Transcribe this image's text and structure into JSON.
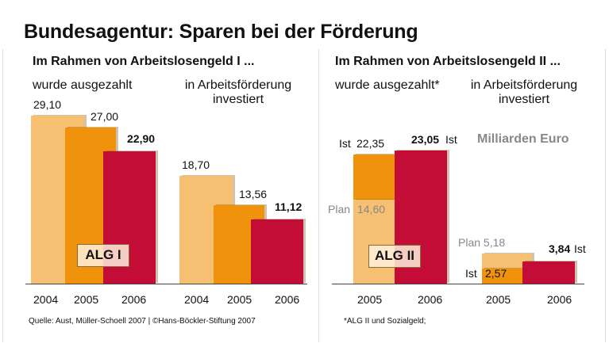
{
  "title": "Bundesagentur: Sparen bei der Förderung",
  "unit": "Milliarden Euro",
  "colors": {
    "y2004": "#f7bf71",
    "y2005": "#f0920c",
    "y2006": "#c30d36",
    "plan": "#f7bf71"
  },
  "source": "Quelle: Aust, Müller-Schoell 2007 | ©Hans-Böckler-Stiftung 2007",
  "footnote": "*ALG II und Sozialgeld;",
  "chart_data": [
    {
      "type": "bar",
      "title": "Im Rahmen von Arbeitslosengeld I ...",
      "tag": "ALG I",
      "groups": [
        {
          "label": "wurde ausgezahlt",
          "categories": [
            "2004",
            "2005",
            "2006"
          ],
          "values": [
            29.1,
            27.0,
            22.9
          ],
          "labels": [
            "29,10",
            "27,00",
            "22,90"
          ]
        },
        {
          "label": "in Arbeitsförderung investiert",
          "categories": [
            "2004",
            "2005",
            "2006"
          ],
          "values": [
            18.7,
            13.56,
            11.12
          ],
          "labels": [
            "18,70",
            "13,56",
            "11,12"
          ]
        }
      ]
    },
    {
      "type": "bar",
      "title": "Im Rahmen von Arbeitslosengeld II ...",
      "tag": "ALG II",
      "groups": [
        {
          "label": "wurde ausgezahlt*",
          "categories": [
            "2005",
            "2006"
          ],
          "plan": [
            14.6,
            null
          ],
          "ist": [
            22.35,
            23.05
          ],
          "plan_labels": [
            "Plan",
            "14,60"
          ],
          "ist_labels": [
            [
              "Ist",
              "22,35"
            ],
            [
              "23,05",
              "Ist"
            ]
          ]
        },
        {
          "label": "in Arbeitsförderung investiert",
          "categories": [
            "2005",
            "2006"
          ],
          "plan": [
            5.18,
            null
          ],
          "ist": [
            2.57,
            3.84
          ],
          "plan_labels": [
            "Plan 5,18"
          ],
          "ist_labels": [
            [
              "Ist",
              "2,57"
            ],
            [
              "3,84",
              "Ist"
            ]
          ]
        }
      ]
    }
  ]
}
